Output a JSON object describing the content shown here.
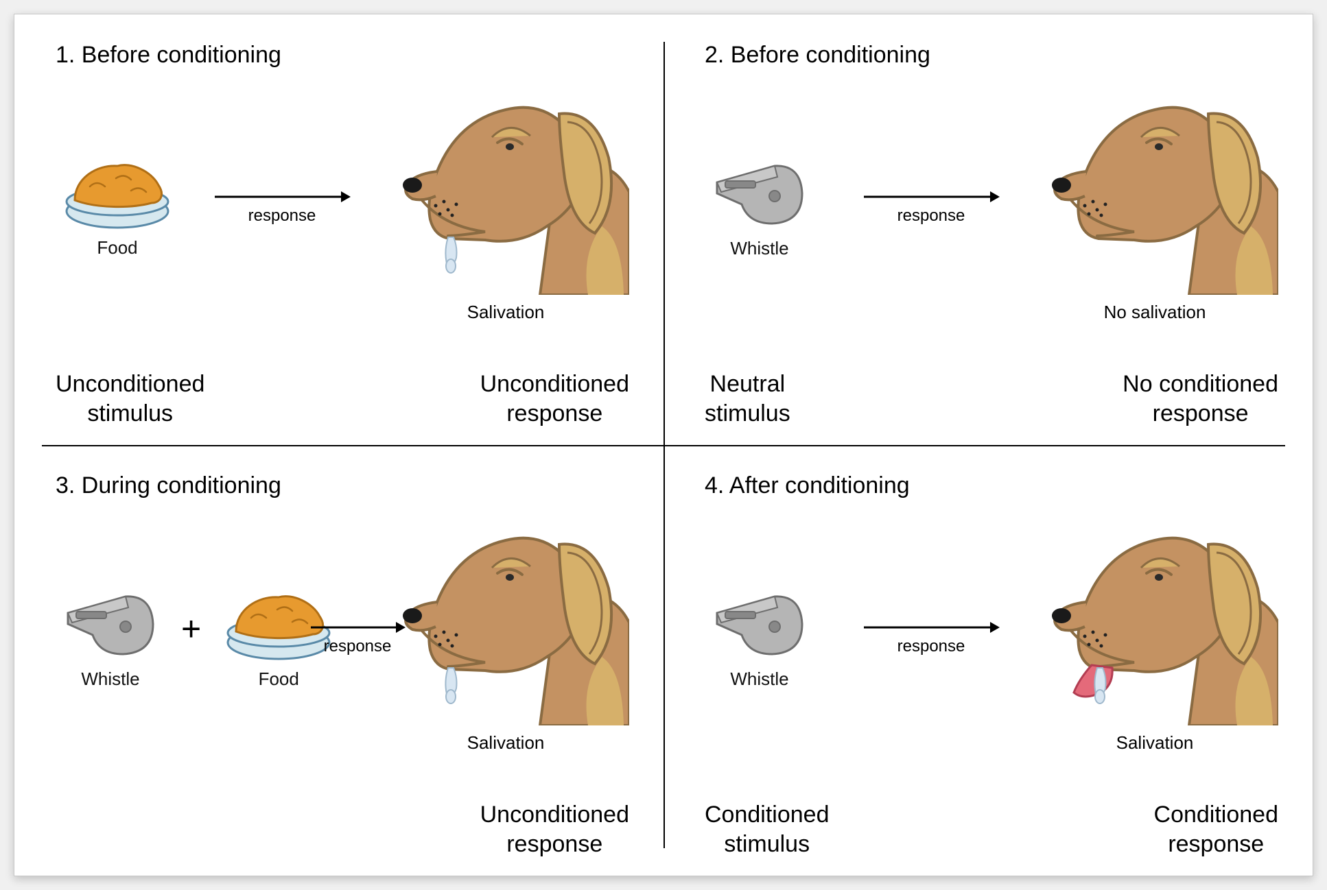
{
  "colors": {
    "dog_body": "#c49262",
    "dog_outline": "#8a6b42",
    "dog_darkpatch": "#d6b06a",
    "bowl_fill": "#d6e8ef",
    "bowl_rim": "#5a8aa8",
    "food_fill": "#e79a2f",
    "food_outline": "#b06f16",
    "whistle_fill": "#b5b5b5",
    "whistle_outline": "#6e6e6e",
    "arrow": "#000000",
    "text": "#000000",
    "drool": "#d8e6f2"
  },
  "panels": {
    "p1": {
      "title": "1.  Before conditioning",
      "stimuli": [
        {
          "type": "food",
          "label": "Food"
        }
      ],
      "arrow_label": "response",
      "dog_salivating": true,
      "dog_label": "Salivation",
      "bottom_left": "Unconditioned\nstimulus",
      "bottom_right": "Unconditioned\nresponse"
    },
    "p2": {
      "title": "2.  Before conditioning",
      "stimuli": [
        {
          "type": "whistle",
          "label": "Whistle"
        }
      ],
      "arrow_label": "response",
      "dog_salivating": false,
      "dog_label": "No salivation",
      "bottom_left": "Neutral\nstimulus",
      "bottom_right": "No conditioned\nresponse"
    },
    "p3": {
      "title": "3.  During conditioning",
      "stimuli": [
        {
          "type": "whistle",
          "label": "Whistle"
        },
        {
          "type": "food",
          "label": "Food"
        }
      ],
      "arrow_label": "response",
      "dog_salivating": true,
      "dog_label": "Salivation",
      "bottom_left": "",
      "bottom_right": "Unconditioned\nresponse"
    },
    "p4": {
      "title": "4.  After conditioning",
      "stimuli": [
        {
          "type": "whistle",
          "label": "Whistle"
        }
      ],
      "arrow_label": "response",
      "dog_salivating": true,
      "dog_tongue_out": true,
      "dog_label": "Salivation",
      "bottom_left": "Conditioned\nstimulus",
      "bottom_right": "Conditioned\nresponse"
    }
  },
  "layout": {
    "arrow_length": 200,
    "dog_width": 360,
    "dog_height": 300,
    "food_width": 160,
    "whistle_width": 140
  }
}
